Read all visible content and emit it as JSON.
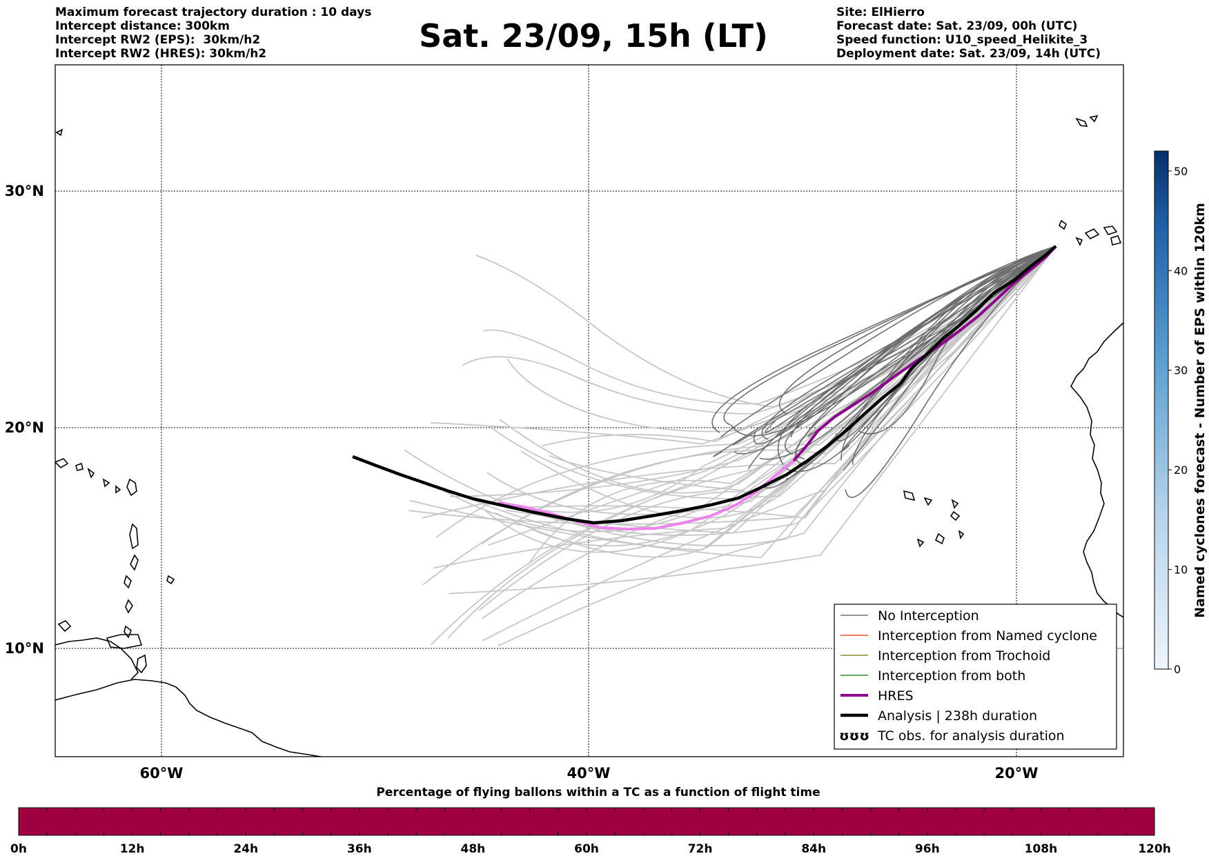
{
  "header": {
    "left": [
      "Maximum forecast trajectory duration : 10 days",
      "Intercept distance: 300km",
      "Intercept RW2 (EPS):  30km/h2",
      "Intercept RW2 (HRES): 30km/h2"
    ],
    "title": "Sat. 23/09, 15h (LT)",
    "right": [
      "Site: ElHierro",
      "Forecast date: Sat. 23/09, 00h (UTC)",
      "Speed function: U10_speed_Helikite_3",
      "Deployment date: Sat. 23/09, 14h (UTC)"
    ]
  },
  "map": {
    "lon_labels": [
      "60°W",
      "40°W",
      "20°W"
    ],
    "lat_labels": [
      "30°N",
      "20°N",
      "10°N"
    ],
    "lon_values": [
      -60,
      -40,
      -20
    ],
    "lat_values": [
      30,
      20,
      10
    ],
    "colors": {
      "no_interception": "#707070",
      "named_cyclone": "#e8501e",
      "trochoid": "#8a8a2a",
      "both": "#2e8b2e",
      "hres": "#8b008b",
      "hres_highlight": "#ee82ee",
      "analysis": "#000000",
      "ensemble_light": "#c8c8c8"
    }
  },
  "legend": {
    "items": [
      "No Interception",
      "Interception from Named cyclone",
      "Interception from Trochoid",
      "Interception from both",
      "HRES",
      "Analysis | 238h duration",
      "TC obs. for analysis duration"
    ],
    "tc_symbol": "ʊʊʊ"
  },
  "colorbar": {
    "label": "Named cyclones forecast - Number of EPS within 120km",
    "ticks": [
      "0",
      "10",
      "20",
      "30",
      "40",
      "50"
    ],
    "range": [
      0,
      52
    ],
    "color_low": "#e4eef9",
    "color_high": "#08306b"
  },
  "flight_bar": {
    "title": "Percentage of flying ballons within a TC as a function of flight time",
    "labels": [
      "0h",
      "12h",
      "24h",
      "36h",
      "48h",
      "60h",
      "72h",
      "84h",
      "96h",
      "108h",
      "120h"
    ],
    "fill_color": "#9e0040",
    "percent_in_tc": 100
  }
}
